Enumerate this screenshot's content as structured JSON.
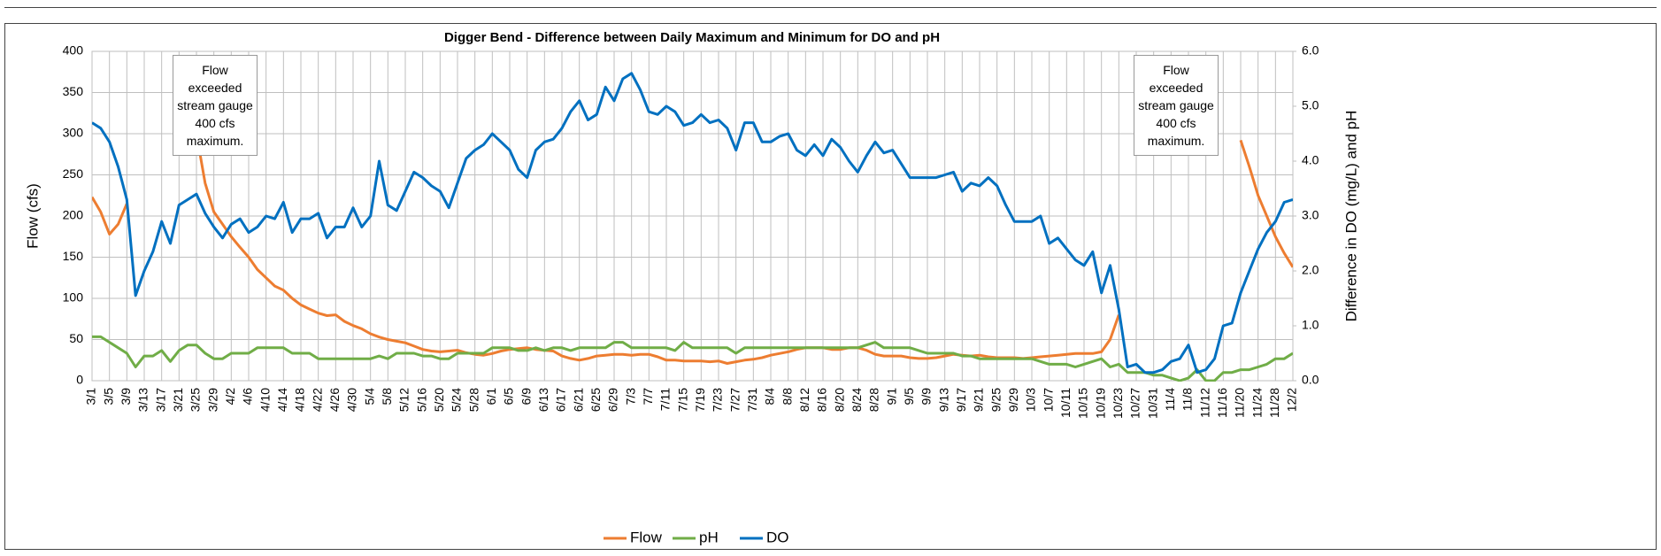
{
  "chart_data": {
    "type": "line",
    "title": "Digger Bend - Difference between Daily Maximum and Minimum for DO and pH",
    "y_label": "Flow (cfs)",
    "y2_label": "Difference in DO (mg/L) and pH",
    "annotations": [
      {
        "text": "Flow exceeded stream gauge 400 cfs maximum."
      },
      {
        "text": "Flow exceeded stream gauge 400 cfs maximum."
      }
    ],
    "categories": [
      "3/1",
      null,
      "3/5",
      null,
      "3/9",
      null,
      "3/13",
      null,
      "3/17",
      null,
      "3/21",
      null,
      "3/25",
      null,
      "3/29",
      null,
      "4/2",
      null,
      "4/6",
      null,
      "4/10",
      null,
      "4/14",
      null,
      "4/18",
      null,
      "4/22",
      null,
      "4/26",
      null,
      "4/30",
      null,
      "5/4",
      null,
      "5/8",
      null,
      "5/12",
      null,
      "5/16",
      null,
      "5/20",
      null,
      "5/24",
      null,
      "5/28",
      null,
      "6/1",
      null,
      "6/5",
      null,
      "6/9",
      null,
      "6/13",
      null,
      "6/17",
      null,
      "6/21",
      null,
      "6/25",
      null,
      "6/29",
      null,
      "7/3",
      null,
      "7/7",
      null,
      "7/11",
      null,
      "7/15",
      null,
      "7/19",
      null,
      "7/23",
      null,
      "7/27",
      null,
      "7/31",
      null,
      "8/4",
      null,
      "8/8",
      null,
      "8/12",
      null,
      "8/16",
      null,
      "8/20",
      null,
      "8/24",
      null,
      "8/28",
      null,
      "9/1",
      null,
      "9/5",
      null,
      "9/9",
      null,
      "9/13",
      null,
      "9/17",
      null,
      "9/21",
      null,
      "9/25",
      null,
      "9/29",
      null,
      "10/3",
      null,
      "10/7",
      null,
      "10/11",
      null,
      "10/15",
      null,
      "10/19",
      null,
      "10/23",
      null,
      "10/27",
      null,
      "10/31",
      null,
      "11/4",
      null,
      "11/8",
      null,
      "11/12",
      null,
      "11/16",
      null,
      "11/20",
      null,
      "11/24",
      null,
      "11/28",
      null,
      "12/2"
    ],
    "series": [
      {
        "name": "Flow",
        "color": "#ed7d31",
        "values": [
          223,
          205,
          178,
          190,
          215,
          null,
          null,
          null,
          null,
          null,
          null,
          null,
          300,
          240,
          205,
          190,
          175,
          162,
          150,
          135,
          125,
          115,
          110,
          100,
          92,
          87,
          82,
          79,
          80,
          72,
          67,
          63,
          57,
          53,
          50,
          48,
          46,
          42,
          38,
          36,
          35,
          36,
          37,
          34,
          32,
          31,
          33,
          36,
          38,
          39,
          40,
          38,
          37,
          36,
          30,
          27,
          25,
          27,
          30,
          31,
          32,
          32,
          31,
          32,
          32,
          29,
          25,
          25,
          24,
          24,
          24,
          23,
          24,
          21,
          23,
          25,
          26,
          28,
          31,
          33,
          35,
          38,
          40,
          40,
          40,
          38,
          38,
          40,
          40,
          37,
          32,
          30,
          30,
          30,
          28,
          27,
          27,
          28,
          30,
          32,
          31,
          30,
          31,
          29,
          28,
          28,
          28,
          27,
          28,
          29,
          30,
          31,
          32,
          33,
          33,
          33,
          35,
          50,
          80,
          null,
          null,
          null,
          null,
          null,
          null,
          null,
          null,
          null,
          null,
          null,
          null,
          null,
          292,
          260,
          225,
          200,
          175,
          155,
          138
        ]
      },
      {
        "name": "pH",
        "color": "#70ad47",
        "axis": "y2",
        "values": [
          0.8,
          0.8,
          0.7,
          0.6,
          0.5,
          0.25,
          0.45,
          0.45,
          0.55,
          0.35,
          0.55,
          0.65,
          0.65,
          0.5,
          0.4,
          0.4,
          0.5,
          0.5,
          0.5,
          0.6,
          0.6,
          0.6,
          0.6,
          0.5,
          0.5,
          0.5,
          0.4,
          0.4,
          0.4,
          0.4,
          0.4,
          0.4,
          0.4,
          0.45,
          0.4,
          0.5,
          0.5,
          0.5,
          0.45,
          0.45,
          0.4,
          0.4,
          0.5,
          0.5,
          0.5,
          0.5,
          0.6,
          0.6,
          0.6,
          0.55,
          0.55,
          0.6,
          0.55,
          0.6,
          0.6,
          0.55,
          0.6,
          0.6,
          0.6,
          0.6,
          0.7,
          0.7,
          0.6,
          0.6,
          0.6,
          0.6,
          0.6,
          0.55,
          0.7,
          0.6,
          0.6,
          0.6,
          0.6,
          0.6,
          0.5,
          0.6,
          0.6,
          0.6,
          0.6,
          0.6,
          0.6,
          0.6,
          0.6,
          0.6,
          0.6,
          0.6,
          0.6,
          0.6,
          0.6,
          0.65,
          0.7,
          0.6,
          0.6,
          0.6,
          0.6,
          0.55,
          0.5,
          0.5,
          0.5,
          0.5,
          0.45,
          0.45,
          0.4,
          0.4,
          0.4,
          0.4,
          0.4,
          0.4,
          0.4,
          0.35,
          0.3,
          0.3,
          0.3,
          0.25,
          0.3,
          0.35,
          0.4,
          0.25,
          0.3,
          0.15,
          0.15,
          0.15,
          0.1,
          0.1,
          0.05,
          0.0,
          0.05,
          0.2,
          0.0,
          0.0,
          0.15,
          0.15,
          0.2,
          0.2,
          0.25,
          0.3,
          0.4,
          0.4,
          0.5
        ]
      },
      {
        "name": "DO",
        "color": "#0070c0",
        "axis": "y2",
        "values": [
          4.7,
          4.6,
          4.35,
          3.9,
          3.3,
          1.55,
          2.0,
          2.35,
          2.9,
          2.5,
          3.2,
          3.3,
          3.4,
          3.05,
          2.8,
          2.6,
          2.85,
          2.95,
          2.7,
          2.8,
          3.0,
          2.95,
          3.25,
          2.7,
          2.95,
          2.95,
          3.05,
          2.6,
          2.8,
          2.8,
          3.15,
          2.8,
          3.0,
          4.0,
          3.2,
          3.1,
          3.45,
          3.8,
          3.7,
          3.55,
          3.45,
          3.15,
          3.6,
          4.05,
          4.2,
          4.3,
          4.5,
          4.35,
          4.2,
          3.85,
          3.7,
          4.2,
          4.35,
          4.4,
          4.6,
          4.9,
          5.1,
          4.75,
          4.85,
          5.35,
          5.1,
          5.5,
          5.6,
          5.3,
          4.9,
          4.85,
          5.0,
          4.9,
          4.65,
          4.7,
          4.85,
          4.7,
          4.75,
          4.6,
          4.2,
          4.7,
          4.7,
          4.35,
          4.35,
          4.45,
          4.5,
          4.2,
          4.1,
          4.3,
          4.1,
          4.4,
          4.25,
          4.0,
          3.8,
          4.1,
          4.35,
          4.15,
          4.2,
          3.95,
          3.7,
          3.7,
          3.7,
          3.7,
          3.75,
          3.8,
          3.45,
          3.6,
          3.55,
          3.7,
          3.55,
          3.2,
          2.9,
          2.9,
          2.9,
          3.0,
          2.5,
          2.6,
          2.4,
          2.2,
          2.1,
          2.35,
          1.6,
          2.1,
          1.3,
          0.25,
          0.3,
          0.15,
          0.15,
          0.2,
          0.35,
          0.4,
          0.65,
          0.15,
          0.2,
          0.4,
          1.0,
          1.05,
          1.6,
          2.0,
          2.4,
          2.7,
          2.9,
          3.25,
          3.3
        ]
      }
    ],
    "ylim": [
      0,
      400
    ],
    "yticks": [
      0,
      50,
      100,
      150,
      200,
      250,
      300,
      350,
      400
    ],
    "y2lim": [
      0,
      6
    ],
    "y2ticks": [
      {
        "value": 0,
        "label": "0.0"
      },
      {
        "value": 1,
        "label": "1.0"
      },
      {
        "value": 2,
        "label": "2.0"
      },
      {
        "value": 3,
        "label": "3.0"
      },
      {
        "value": 4,
        "label": "4.0"
      },
      {
        "value": 5,
        "label": "5.0"
      },
      {
        "value": 6,
        "label": "6.0"
      }
    ],
    "grid": true
  }
}
